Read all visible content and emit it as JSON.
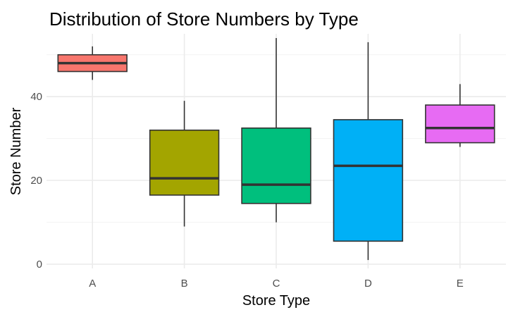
{
  "chart_data": {
    "type": "boxplot",
    "title": "Distribution of Store Numbers by Type",
    "xlabel": "Store Type",
    "ylabel": "Store Number",
    "categories": [
      "A",
      "B",
      "C",
      "D",
      "E"
    ],
    "ylim": [
      -1,
      55
    ],
    "yticks": [
      0,
      20,
      40
    ],
    "grid": true,
    "legend": "none",
    "series": [
      {
        "category": "A",
        "min": 44,
        "q1": 46,
        "median": 48,
        "q3": 50,
        "max": 52,
        "color": "#F8766D"
      },
      {
        "category": "B",
        "min": 9,
        "q1": 16.5,
        "median": 20.5,
        "q3": 32,
        "max": 39,
        "color": "#A3A500"
      },
      {
        "category": "C",
        "min": 10,
        "q1": 14.5,
        "median": 19,
        "q3": 32.5,
        "max": 54,
        "color": "#00BF7D"
      },
      {
        "category": "D",
        "min": 1,
        "q1": 5.5,
        "median": 23.5,
        "q3": 34.5,
        "max": 53,
        "color": "#00B0F6"
      },
      {
        "category": "E",
        "min": 28,
        "q1": 29,
        "median": 32.5,
        "q3": 38,
        "max": 43,
        "color": "#E76BF3"
      }
    ]
  }
}
